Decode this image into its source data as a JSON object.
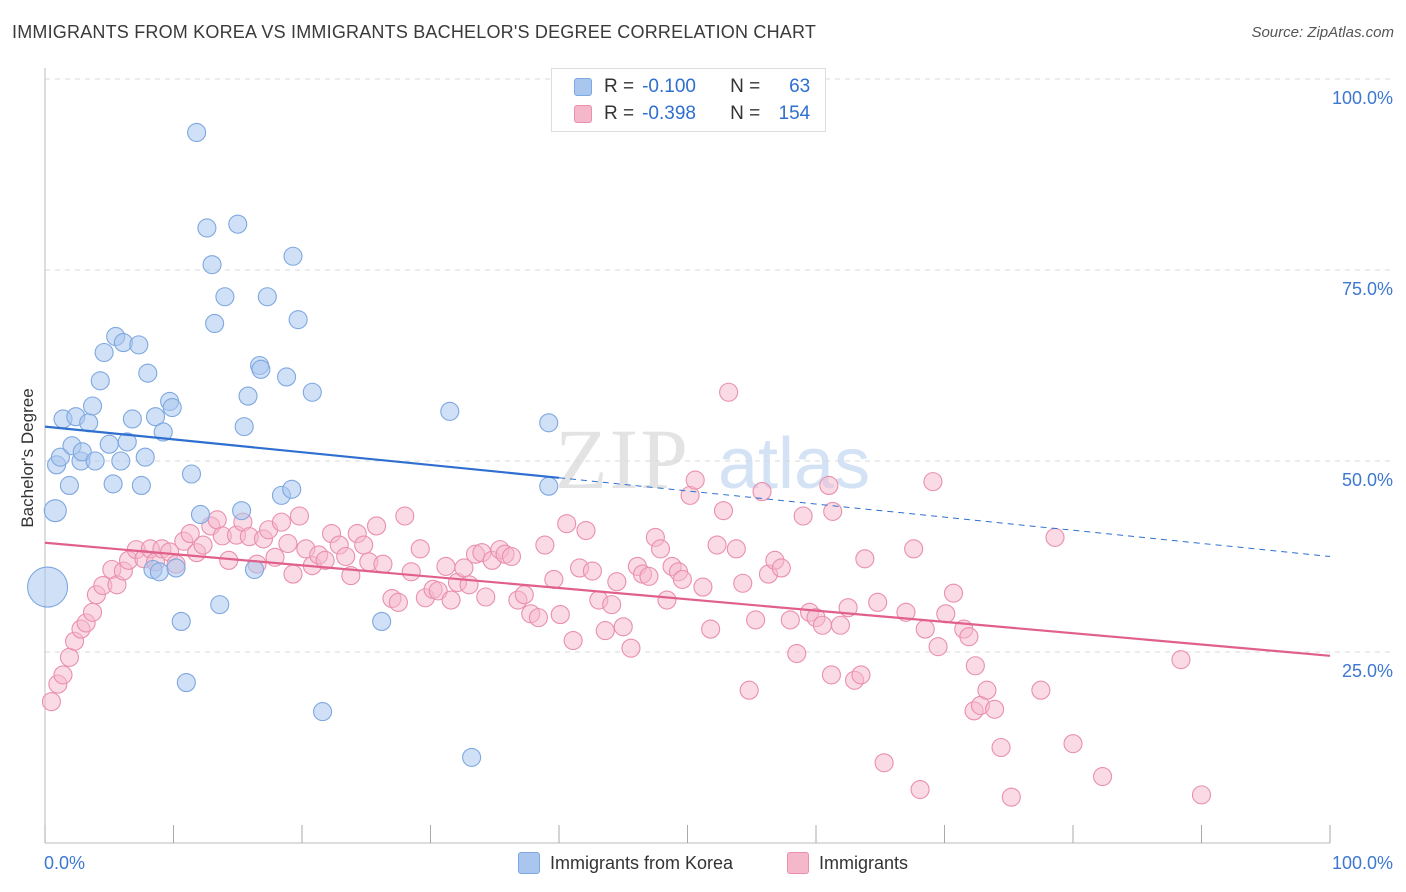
{
  "title": "IMMIGRANTS FROM KOREA VS IMMIGRANTS BACHELOR'S DEGREE CORRELATION CHART",
  "source": "Source: ZipAtlas.com",
  "watermark": {
    "zip": "ZIP",
    "atlas": "atlas"
  },
  "legend_stats": [
    {
      "r_label": "R =",
      "r_value": "-0.100",
      "n_label": "N =",
      "n_value": "63"
    },
    {
      "r_label": "R =",
      "r_value": "-0.398",
      "n_label": "N =",
      "n_value": "154"
    }
  ],
  "colors": {
    "blue_fill": "#a9c6ee",
    "blue_stroke": "#7ea8e0",
    "blue_line": "#2e6fd0",
    "pink_fill": "#f5b8cb",
    "pink_stroke": "#ea8fac",
    "pink_line": "#e0608b",
    "tick_label": "#3d78d0",
    "grid": "#d8d8d8"
  },
  "chart_data": {
    "type": "scatter",
    "title": "IMMIGRANTS FROM KOREA VS IMMIGRANTS BACHELOR'S DEGREE CORRELATION CHART",
    "xlabel": "",
    "ylabel": "Bachelor's Degree",
    "xlim": [
      0,
      100
    ],
    "ylim": [
      0,
      100
    ],
    "x_tick_labels": [
      "0.0%",
      "100.0%"
    ],
    "y_tick_labels": [
      "25.0%",
      "50.0%",
      "75.0%",
      "100.0%"
    ],
    "y_ticks": [
      25,
      50,
      75,
      100
    ],
    "grid": true,
    "legend_position": "top-center",
    "series": [
      {
        "name": "Immigrants from Korea",
        "color": "#a9c6ee",
        "trend": {
          "x0": 0,
          "y0": 54.5,
          "x1": 40,
          "y1": 47.8,
          "dash_x1": 100,
          "dash_y1": 37.5
        },
        "points": [
          [
            0.2,
            33.5,
            20
          ],
          [
            0.8,
            43.5,
            11
          ],
          [
            0.9,
            49.5,
            9
          ],
          [
            1.2,
            50.5,
            9
          ],
          [
            1.4,
            55.5,
            9
          ],
          [
            1.9,
            46.8,
            9
          ],
          [
            2.1,
            52.0,
            9
          ],
          [
            2.4,
            55.8,
            9
          ],
          [
            2.8,
            50.0,
            9
          ],
          [
            2.9,
            51.2,
            9
          ],
          [
            3.4,
            55.0,
            9
          ],
          [
            3.7,
            57.2,
            9
          ],
          [
            3.9,
            50.0,
            9
          ],
          [
            4.3,
            60.5,
            9
          ],
          [
            4.6,
            64.2,
            9
          ],
          [
            5.0,
            52.2,
            9
          ],
          [
            5.3,
            47.0,
            9
          ],
          [
            5.5,
            66.3,
            9
          ],
          [
            5.9,
            50.0,
            9
          ],
          [
            6.1,
            65.5,
            9
          ],
          [
            6.4,
            52.5,
            9
          ],
          [
            6.8,
            55.5,
            9
          ],
          [
            7.3,
            65.2,
            9
          ],
          [
            7.5,
            46.8,
            9
          ],
          [
            7.8,
            50.5,
            9
          ],
          [
            8.0,
            61.5,
            9
          ],
          [
            8.4,
            35.8,
            9
          ],
          [
            8.6,
            55.8,
            9
          ],
          [
            8.9,
            35.5,
            9
          ],
          [
            9.2,
            53.8,
            9
          ],
          [
            9.7,
            57.8,
            9
          ],
          [
            9.9,
            57.0,
            9
          ],
          [
            10.2,
            36.0,
            9
          ],
          [
            10.6,
            29.0,
            9
          ],
          [
            11.0,
            21.0,
            9
          ],
          [
            11.4,
            48.3,
            9
          ],
          [
            11.8,
            93.0,
            9
          ],
          [
            12.1,
            43.0,
            9
          ],
          [
            12.6,
            80.5,
            9
          ],
          [
            13.0,
            75.7,
            9
          ],
          [
            13.2,
            68.0,
            9
          ],
          [
            13.6,
            31.2,
            9
          ],
          [
            14.0,
            71.5,
            9
          ],
          [
            15.0,
            81.0,
            9
          ],
          [
            15.3,
            43.5,
            9
          ],
          [
            15.5,
            54.5,
            9
          ],
          [
            15.8,
            58.5,
            9
          ],
          [
            16.3,
            35.8,
            9
          ],
          [
            16.7,
            62.5,
            9
          ],
          [
            16.8,
            62.0,
            9
          ],
          [
            17.3,
            71.5,
            9
          ],
          [
            18.4,
            45.5,
            9
          ],
          [
            18.8,
            61.0,
            9
          ],
          [
            19.2,
            46.3,
            9
          ],
          [
            19.3,
            76.8,
            9
          ],
          [
            19.7,
            68.5,
            9
          ],
          [
            20.8,
            59.0,
            9
          ],
          [
            21.6,
            17.2,
            9
          ],
          [
            26.2,
            29.0,
            9
          ],
          [
            31.5,
            56.5,
            9
          ],
          [
            33.2,
            11.2,
            9
          ],
          [
            39.2,
            55.0,
            9
          ],
          [
            39.2,
            46.7,
            9
          ]
        ]
      },
      {
        "name": "Immigrants",
        "color": "#f5b8cb",
        "trend": {
          "x0": 0,
          "y0": 39.3,
          "x1": 100,
          "y1": 24.5
        },
        "points": [
          [
            0.5,
            18.5
          ],
          [
            1.0,
            20.8
          ],
          [
            1.4,
            22.0
          ],
          [
            1.9,
            24.3
          ],
          [
            2.3,
            26.4
          ],
          [
            2.8,
            28.0
          ],
          [
            3.2,
            28.8
          ],
          [
            3.7,
            30.2
          ],
          [
            4.0,
            32.5
          ],
          [
            4.5,
            33.7
          ],
          [
            5.2,
            35.8
          ],
          [
            5.6,
            33.8
          ],
          [
            6.1,
            35.6
          ],
          [
            6.5,
            37.0
          ],
          [
            7.1,
            38.4
          ],
          [
            7.7,
            37.2
          ],
          [
            8.2,
            38.5
          ],
          [
            8.6,
            36.8
          ],
          [
            9.1,
            38.5
          ],
          [
            9.7,
            38.1
          ],
          [
            10.2,
            36.5
          ],
          [
            10.8,
            39.5
          ],
          [
            11.3,
            40.5
          ],
          [
            11.8,
            38.0
          ],
          [
            12.3,
            39.0
          ],
          [
            12.9,
            41.5
          ],
          [
            13.4,
            42.3
          ],
          [
            13.8,
            40.2
          ],
          [
            14.3,
            37.0
          ],
          [
            14.9,
            40.3
          ],
          [
            15.4,
            42.0
          ],
          [
            15.9,
            40.1
          ],
          [
            16.5,
            36.5
          ],
          [
            17.0,
            39.8
          ],
          [
            17.4,
            41.0
          ],
          [
            17.9,
            37.4
          ],
          [
            18.4,
            42.0
          ],
          [
            18.9,
            39.2
          ],
          [
            19.3,
            35.2
          ],
          [
            19.8,
            42.8
          ],
          [
            20.3,
            38.5
          ],
          [
            20.8,
            36.3
          ],
          [
            21.3,
            37.7
          ],
          [
            21.8,
            37.0
          ],
          [
            22.3,
            40.5
          ],
          [
            22.9,
            39.0
          ],
          [
            23.4,
            37.5
          ],
          [
            23.8,
            35.0
          ],
          [
            24.3,
            40.5
          ],
          [
            24.8,
            39.0
          ],
          [
            25.2,
            36.8
          ],
          [
            25.8,
            41.5
          ],
          [
            26.3,
            36.5
          ],
          [
            27.0,
            32.0
          ],
          [
            27.5,
            31.5
          ],
          [
            28.0,
            42.8
          ],
          [
            28.5,
            35.5
          ],
          [
            29.2,
            38.5
          ],
          [
            29.6,
            32.1
          ],
          [
            30.2,
            33.2
          ],
          [
            30.6,
            33.0
          ],
          [
            31.2,
            36.2
          ],
          [
            31.6,
            31.8
          ],
          [
            32.1,
            34.1
          ],
          [
            32.6,
            36.0
          ],
          [
            33.0,
            33.8
          ],
          [
            33.5,
            37.8
          ],
          [
            34.0,
            38.0
          ],
          [
            34.3,
            32.2
          ],
          [
            34.8,
            37.0
          ],
          [
            35.4,
            38.4
          ],
          [
            35.8,
            37.8
          ],
          [
            36.3,
            37.5
          ],
          [
            36.8,
            31.8
          ],
          [
            37.3,
            32.5
          ],
          [
            37.8,
            30.0
          ],
          [
            38.4,
            29.5
          ],
          [
            38.9,
            39.0
          ],
          [
            39.6,
            34.5
          ],
          [
            40.1,
            29.9
          ],
          [
            40.6,
            41.8
          ],
          [
            41.1,
            26.5
          ],
          [
            41.6,
            36.0
          ],
          [
            42.1,
            40.9
          ],
          [
            42.6,
            35.6
          ],
          [
            43.1,
            31.8
          ],
          [
            43.6,
            27.8
          ],
          [
            44.1,
            31.2
          ],
          [
            44.5,
            34.2
          ],
          [
            45.0,
            28.3
          ],
          [
            45.6,
            25.5
          ],
          [
            46.1,
            36.2
          ],
          [
            46.5,
            35.2
          ],
          [
            47.0,
            34.9
          ],
          [
            47.5,
            40.0
          ],
          [
            47.9,
            38.5
          ],
          [
            48.4,
            31.8
          ],
          [
            48.8,
            36.2
          ],
          [
            49.3,
            35.5
          ],
          [
            49.6,
            34.5
          ],
          [
            50.2,
            45.5
          ],
          [
            50.6,
            47.5
          ],
          [
            51.2,
            33.5
          ],
          [
            51.8,
            28.0
          ],
          [
            52.3,
            39.0
          ],
          [
            52.8,
            43.5
          ],
          [
            53.2,
            59.0
          ],
          [
            53.8,
            38.5
          ],
          [
            54.3,
            34.0
          ],
          [
            54.8,
            20.0
          ],
          [
            55.3,
            29.2
          ],
          [
            55.8,
            46.0
          ],
          [
            56.3,
            35.2
          ],
          [
            56.8,
            37.0
          ],
          [
            57.3,
            36.0
          ],
          [
            58.0,
            29.2
          ],
          [
            58.5,
            24.8
          ],
          [
            59.0,
            42.8
          ],
          [
            59.5,
            30.2
          ],
          [
            60.0,
            29.5
          ],
          [
            60.5,
            28.5
          ],
          [
            61.0,
            46.8
          ],
          [
            61.3,
            43.4
          ],
          [
            61.9,
            28.5
          ],
          [
            62.5,
            30.8
          ],
          [
            63.0,
            21.3
          ],
          [
            63.5,
            22.0
          ],
          [
            63.8,
            37.2
          ],
          [
            64.8,
            31.5
          ],
          [
            65.3,
            10.5
          ],
          [
            67.0,
            30.2
          ],
          [
            67.6,
            38.5
          ],
          [
            68.1,
            7.0
          ],
          [
            69.1,
            47.3
          ],
          [
            69.5,
            25.7
          ],
          [
            70.1,
            30.0
          ],
          [
            70.7,
            32.7
          ],
          [
            71.5,
            28.0
          ],
          [
            71.9,
            27.0
          ],
          [
            72.3,
            17.3
          ],
          [
            72.8,
            18.0
          ],
          [
            73.3,
            20.0
          ],
          [
            73.9,
            17.5
          ],
          [
            74.4,
            12.5
          ],
          [
            75.2,
            6.0
          ],
          [
            77.5,
            20.0
          ],
          [
            78.6,
            40.0
          ],
          [
            80.0,
            13.0
          ],
          [
            82.3,
            8.7
          ],
          [
            88.4,
            24.0
          ],
          [
            90.0,
            6.3
          ],
          [
            72.4,
            23.2
          ],
          [
            61.2,
            22.0
          ],
          [
            68.5,
            28.0
          ]
        ]
      }
    ]
  }
}
